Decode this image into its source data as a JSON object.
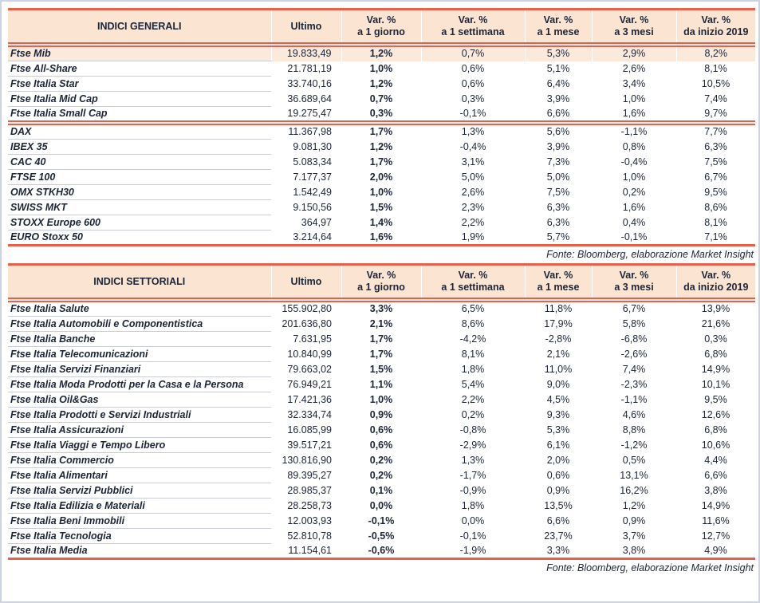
{
  "colors": {
    "accent_red": "#E9604A",
    "header_bg": "#FBE4D2",
    "highlight_row_bg": "#FBE9DB",
    "text": "#1C2537",
    "row_separator": "#C9CDD9",
    "page_frame": "#CDD3E3"
  },
  "tables": [
    {
      "title": "INDICI GENERALI",
      "ultimo_label": "Ultimo",
      "var_columns": [
        {
          "l1": "Var. %",
          "l2": "a 1 giorno"
        },
        {
          "l1": "Var. %",
          "l2": "a 1 settimana"
        },
        {
          "l1": "Var. %",
          "l2": "a 1 mese"
        },
        {
          "l1": "Var. %",
          "l2": "a 3 mesi"
        },
        {
          "l1": "Var. %",
          "l2": "da inizio 2019"
        }
      ],
      "highlight": {
        "section": 0,
        "row": 0
      },
      "sections": [
        {
          "rows": [
            [
              "Ftse Mib",
              "19.833,49",
              "1,2%",
              "0,7%",
              "5,3%",
              "2,9%",
              "8,2%"
            ],
            [
              "Ftse All-Share",
              "21.781,19",
              "1,0%",
              "0,6%",
              "5,1%",
              "2,6%",
              "8,1%"
            ],
            [
              "Ftse Italia Star",
              "33.740,16",
              "1,2%",
              "0,6%",
              "6,4%",
              "3,4%",
              "10,5%"
            ],
            [
              "Ftse Italia Mid Cap",
              "36.689,64",
              "0,7%",
              "0,3%",
              "3,9%",
              "1,0%",
              "7,4%"
            ],
            [
              "Ftse Italia Small Cap",
              "19.275,47",
              "0,3%",
              "-0,1%",
              "6,6%",
              "1,6%",
              "9,7%"
            ]
          ]
        },
        {
          "rows": [
            [
              "DAX",
              "11.367,98",
              "1,7%",
              "1,3%",
              "5,6%",
              "-1,1%",
              "7,7%"
            ],
            [
              "IBEX 35",
              "9.081,30",
              "1,2%",
              "-0,4%",
              "3,9%",
              "0,8%",
              "6,3%"
            ],
            [
              "CAC 40",
              "5.083,34",
              "1,7%",
              "3,1%",
              "7,3%",
              "-0,4%",
              "7,5%"
            ],
            [
              "FTSE 100",
              "7.177,37",
              "2,0%",
              "5,0%",
              "5,0%",
              "1,0%",
              "6,7%"
            ],
            [
              "OMX STKH30",
              "1.542,49",
              "1,0%",
              "2,6%",
              "7,5%",
              "0,2%",
              "9,5%"
            ],
            [
              "SWISS MKT",
              "9.150,56",
              "1,5%",
              "2,3%",
              "6,3%",
              "1,6%",
              "8,6%"
            ],
            [
              "STOXX Europe 600",
              "364,97",
              "1,4%",
              "2,2%",
              "6,3%",
              "0,4%",
              "8,1%"
            ],
            [
              "EURO Stoxx 50",
              "3.214,64",
              "1,6%",
              "1,9%",
              "5,7%",
              "-0,1%",
              "7,1%"
            ]
          ]
        }
      ],
      "source_note": "Fonte: Bloomberg, elaborazione Market Insight"
    },
    {
      "title": "INDICI SETTORIALI",
      "ultimo_label": "Ultimo",
      "var_columns": [
        {
          "l1": "Var. %",
          "l2": "a 1 giorno"
        },
        {
          "l1": "Var. %",
          "l2": "a 1 settimana"
        },
        {
          "l1": "Var. %",
          "l2": "a 1 mese"
        },
        {
          "l1": "Var. %",
          "l2": "a 3 mesi"
        },
        {
          "l1": "Var. %",
          "l2": "da inizio 2019"
        }
      ],
      "highlight": null,
      "sections": [
        {
          "rows": [
            [
              "Ftse Italia Salute",
              "155.902,80",
              "3,3%",
              "6,5%",
              "11,8%",
              "6,7%",
              "13,9%"
            ],
            [
              "Ftse Italia Automobili e Componentistica",
              "201.636,80",
              "2,1%",
              "8,6%",
              "17,9%",
              "5,8%",
              "21,6%"
            ],
            [
              "Ftse Italia Banche",
              "7.631,95",
              "1,7%",
              "-4,2%",
              "-2,8%",
              "-6,8%",
              "0,3%"
            ],
            [
              "Ftse Italia Telecomunicazioni",
              "10.840,99",
              "1,7%",
              "8,1%",
              "2,1%",
              "-2,6%",
              "6,8%"
            ],
            [
              "Ftse Italia Servizi Finanziari",
              "79.663,02",
              "1,5%",
              "1,8%",
              "11,0%",
              "7,4%",
              "14,9%"
            ],
            [
              "Ftse Italia Moda Prodotti per la Casa e la Persona",
              "76.949,21",
              "1,1%",
              "5,4%",
              "9,0%",
              "-2,3%",
              "10,1%"
            ],
            [
              "Ftse Italia Oil&Gas",
              "17.421,36",
              "1,0%",
              "2,2%",
              "4,5%",
              "-1,1%",
              "9,5%"
            ],
            [
              "Ftse Italia Prodotti e Servizi Industriali",
              "32.334,74",
              "0,9%",
              "0,2%",
              "9,3%",
              "4,6%",
              "12,6%"
            ],
            [
              "Ftse Italia Assicurazioni",
              "16.085,99",
              "0,6%",
              "-0,8%",
              "5,3%",
              "8,8%",
              "6,8%"
            ],
            [
              "Ftse Italia Viaggi e Tempo Libero",
              "39.517,21",
              "0,6%",
              "-2,9%",
              "6,1%",
              "-1,2%",
              "10,6%"
            ],
            [
              "Ftse Italia Commercio",
              "130.816,90",
              "0,2%",
              "1,3%",
              "2,0%",
              "0,5%",
              "4,4%"
            ],
            [
              "Ftse Italia Alimentari",
              "89.395,27",
              "0,2%",
              "-1,7%",
              "0,6%",
              "13,1%",
              "6,6%"
            ],
            [
              "Ftse Italia Servizi Pubblici",
              "28.985,37",
              "0,1%",
              "-0,9%",
              "0,9%",
              "16,2%",
              "3,8%"
            ],
            [
              "Ftse Italia Edilizia e Materiali",
              "28.258,73",
              "0,0%",
              "1,8%",
              "13,5%",
              "1,2%",
              "14,9%"
            ],
            [
              "Ftse Italia Beni Immobili",
              "12.003,93",
              "-0,1%",
              "0,0%",
              "6,6%",
              "0,9%",
              "11,6%"
            ],
            [
              "Ftse Italia Tecnologia",
              "52.810,78",
              "-0,5%",
              "-0,1%",
              "23,7%",
              "3,7%",
              "12,7%"
            ],
            [
              "Ftse Italia Media",
              "11.154,61",
              "-0,6%",
              "-1,9%",
              "3,3%",
              "3,8%",
              "4,9%"
            ]
          ]
        }
      ],
      "source_note": "Fonte: Bloomberg, elaborazione Market Insight"
    }
  ]
}
